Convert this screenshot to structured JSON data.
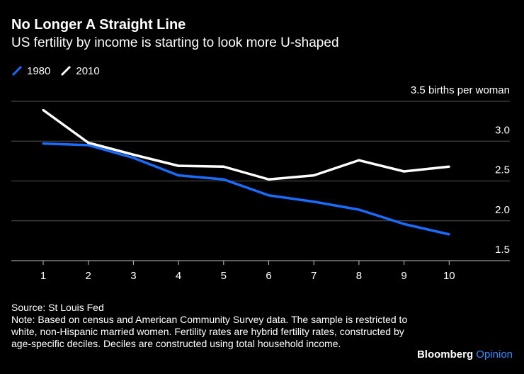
{
  "chart_data": {
    "type": "line",
    "title": "No Longer A Straight Line",
    "subtitle": "US fertility by income is starting to look more U-shaped",
    "categories": [
      "1",
      "2",
      "3",
      "4",
      "5",
      "6",
      "7",
      "8",
      "9",
      "10"
    ],
    "series": [
      {
        "name": "1980",
        "color": "#1a6cff",
        "values": [
          2.97,
          2.95,
          2.79,
          2.57,
          2.52,
          2.32,
          2.24,
          2.14,
          1.96,
          1.83
        ]
      },
      {
        "name": "2010",
        "color": "#ffffff",
        "values": [
          3.39,
          2.98,
          2.83,
          2.69,
          2.68,
          2.52,
          2.57,
          2.76,
          2.62,
          2.68
        ]
      }
    ],
    "y_unit_label": "3.5 births per woman",
    "y_ticks": [
      "3.0",
      "2.5",
      "2.0",
      "1.5"
    ],
    "ylim": [
      1.5,
      3.5
    ],
    "grid": true,
    "legend_position": "top-left"
  },
  "footer": {
    "source": "Source: St Louis Fed",
    "note": "Note: Based on census and American Community Survey data. The sample is restricted to white, non-Hispanic married women. Fertility rates are hybrid fertility rates, constructed by age-specific deciles. Deciles are constructed using total household income."
  },
  "brand": {
    "name": "Bloomberg",
    "suffix": "Opinion",
    "suffix_color": "#2e8cff"
  }
}
